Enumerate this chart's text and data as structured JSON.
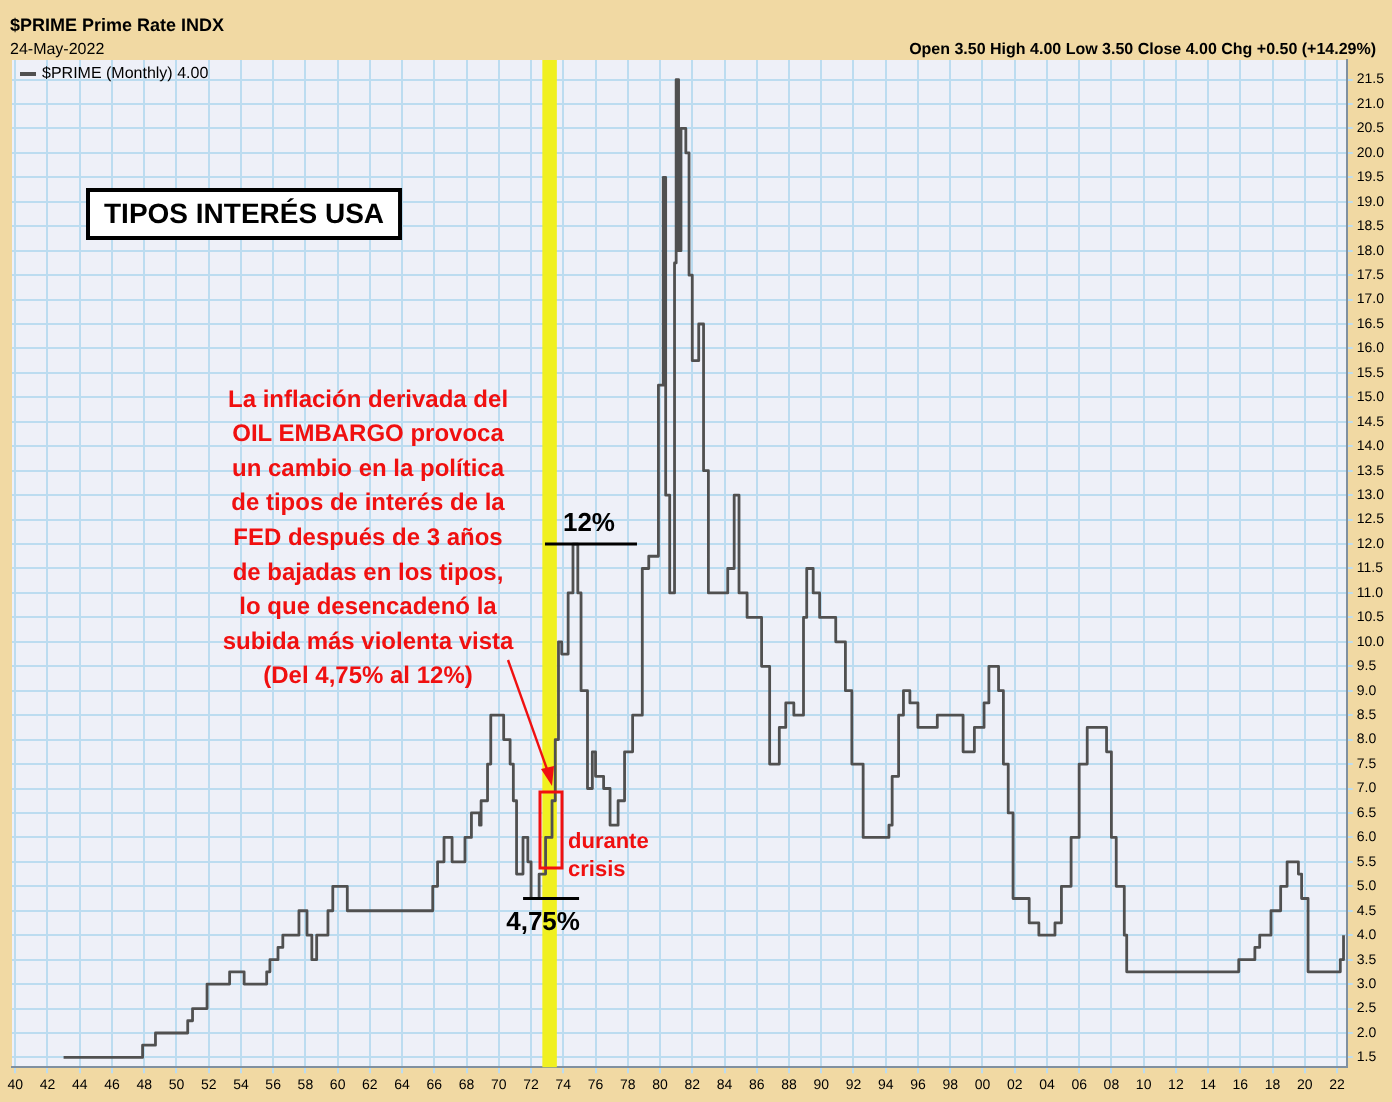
{
  "chart_data": {
    "type": "step",
    "title": "TIPOS INTERÉS USA",
    "annotations": [
      "$PRIME Prime Rate INDX",
      "24-May-2022",
      "Open 3.50 High 4.00 Low 3.50 Close 4.00 Chg +0.50 (+14.29%)",
      "La inflación derivada del\nOIL EMBARGO provoca\nun cambio en la política\nde tipos de interés de la\nFED después de 3 años\nde bajadas en los tipos,\nlo que desencadenó la\nsubida más violenta vista\n(Del 4,75% al 12%)",
      {
        "text": "12%",
        "x": 1974.6,
        "y": 12
      },
      {
        "text": "4,75%",
        "x": 1972.0,
        "y": 4.75
      },
      "durante\ncrisis"
    ],
    "xlim": [
      1939.8,
      2022.6
    ],
    "xticks": [
      {
        "value": 1940,
        "label": "40"
      },
      {
        "value": 1942,
        "label": "42"
      },
      {
        "value": 1944,
        "label": "44"
      },
      {
        "value": 1946,
        "label": "46"
      },
      {
        "value": 1948,
        "label": "48"
      },
      {
        "value": 1950,
        "label": "50"
      },
      {
        "value": 1952,
        "label": "52"
      },
      {
        "value": 1954,
        "label": "54"
      },
      {
        "value": 1956,
        "label": "56"
      },
      {
        "value": 1958,
        "label": "58"
      },
      {
        "value": 1960,
        "label": "60"
      },
      {
        "value": 1962,
        "label": "62"
      },
      {
        "value": 1964,
        "label": "64"
      },
      {
        "value": 1966,
        "label": "66"
      },
      {
        "value": 1968,
        "label": "68"
      },
      {
        "value": 1970,
        "label": "70"
      },
      {
        "value": 1972,
        "label": "72"
      },
      {
        "value": 1974,
        "label": "74"
      },
      {
        "value": 1976,
        "label": "76"
      },
      {
        "value": 1978,
        "label": "78"
      },
      {
        "value": 1980,
        "label": "80"
      },
      {
        "value": 1982,
        "label": "82"
      },
      {
        "value": 1984,
        "label": "84"
      },
      {
        "value": 1986,
        "label": "86"
      },
      {
        "value": 1988,
        "label": "88"
      },
      {
        "value": 1990,
        "label": "90"
      },
      {
        "value": 1992,
        "label": "92"
      },
      {
        "value": 1994,
        "label": "94"
      },
      {
        "value": 1996,
        "label": "96"
      },
      {
        "value": 1998,
        "label": "98"
      },
      {
        "value": 2000,
        "label": "00"
      },
      {
        "value": 2002,
        "label": "02"
      },
      {
        "value": 2004,
        "label": "04"
      },
      {
        "value": 2006,
        "label": "06"
      },
      {
        "value": 2008,
        "label": "08"
      },
      {
        "value": 2010,
        "label": "10"
      },
      {
        "value": 2012,
        "label": "12"
      },
      {
        "value": 2014,
        "label": "14"
      },
      {
        "value": 2016,
        "label": "16"
      },
      {
        "value": 2018,
        "label": "18"
      },
      {
        "value": 2020,
        "label": "20"
      },
      {
        "value": 2022,
        "label": "22"
      }
    ],
    "ylim": [
      1.3,
      21.9
    ],
    "yticks": [
      1.5,
      {
        "value": 2,
        "label": "2.0"
      },
      2.5,
      {
        "value": 3,
        "label": "3.0"
      },
      3.5,
      {
        "value": 4,
        "label": "4.0"
      },
      4.5,
      {
        "value": 5,
        "label": "5.0"
      },
      5.5,
      {
        "value": 6,
        "label": "6.0"
      },
      6.5,
      {
        "value": 7,
        "label": "7.0"
      },
      7.5,
      {
        "value": 8,
        "label": "8.0"
      },
      8.5,
      {
        "value": 9,
        "label": "9.0"
      },
      9.5,
      {
        "value": 10,
        "label": "10.0"
      },
      10.5,
      {
        "value": 11,
        "label": "11.0"
      },
      11.5,
      {
        "value": 12,
        "label": "12.0"
      },
      12.5,
      {
        "value": 13,
        "label": "13.0"
      },
      13.5,
      {
        "value": 14,
        "label": "14.0"
      },
      14.5,
      {
        "value": 15,
        "label": "15.0"
      },
      15.5,
      {
        "value": 16,
        "label": "16.0"
      },
      16.5,
      {
        "value": 17,
        "label": "17.0"
      },
      17.5,
      {
        "value": 18,
        "label": "18.0"
      },
      18.5,
      {
        "value": 19,
        "label": "19.0"
      },
      19.5,
      {
        "value": 20,
        "label": "20.0"
      },
      20.5,
      {
        "value": 21,
        "label": "21.0"
      },
      21.5
    ],
    "grid": true,
    "legend": "top left",
    "marker": "none",
    "line_style": "solid",
    "bands": [
      {
        "axis": "x",
        "from": 1972.7,
        "to": 1973.6,
        "color": "#f0f020"
      }
    ],
    "series": [
      {
        "name": "$PRIME (Monthly) 4.00",
        "color": "#505050",
        "x": [
          1943.0,
          1947.9,
          1948.7,
          1950.7,
          1951.0,
          1951.9,
          1953.3,
          1954.2,
          1955.6,
          1955.8,
          1956.3,
          1956.6,
          1957.6,
          1958.1,
          1958.4,
          1958.7,
          1959.4,
          1959.7,
          1960.6,
          1965.9,
          1966.2,
          1966.6,
          1967.1,
          1967.9,
          1968.3,
          1968.8,
          1968.9,
          1969.3,
          1969.5,
          1970.3,
          1970.7,
          1970.9,
          1971.1,
          1971.5,
          1971.8,
          1972.0,
          1972.5,
          1972.9,
          1973.3,
          1973.5,
          1973.7,
          1973.9,
          1974.3,
          1974.6,
          1974.9,
          1975.1,
          1975.5,
          1975.8,
          1976.0,
          1976.5,
          1976.9,
          1977.4,
          1977.8,
          1978.3,
          1978.9,
          1979.3,
          1979.9,
          1980.2,
          1980.35,
          1980.6,
          1980.9,
          1981.0,
          1981.15,
          1981.3,
          1981.6,
          1981.8,
          1982.0,
          1982.4,
          1982.7,
          1983.0,
          1984.2,
          1984.6,
          1984.9,
          1985.4,
          1986.3,
          1986.8,
          1987.4,
          1987.8,
          1988.3,
          1988.9,
          1989.1,
          1989.5,
          1989.9,
          1990.9,
          1991.5,
          1991.9,
          1992.6,
          1994.2,
          1994.4,
          1994.8,
          1995.1,
          1995.5,
          1996.0,
          1997.2,
          1998.8,
          1999.5,
          2000.1,
          2000.4,
          2001.0,
          2001.3,
          2001.6,
          2001.9,
          2002.9,
          2003.5,
          2004.5,
          2004.9,
          2005.5,
          2006.0,
          2006.5,
          2007.7,
          2008.0,
          2008.3,
          2008.8,
          2008.95,
          2015.9,
          2016.9,
          2017.2,
          2017.9,
          2018.5,
          2018.9,
          2019.6,
          2019.8,
          2020.2,
          2022.2,
          2022.4
        ],
        "values": [
          1.5,
          1.75,
          2.0,
          2.25,
          2.5,
          3.0,
          3.25,
          3.0,
          3.25,
          3.5,
          3.75,
          4.0,
          4.5,
          4.0,
          3.5,
          4.0,
          4.5,
          5.0,
          4.5,
          5.0,
          5.5,
          6.0,
          5.5,
          6.0,
          6.5,
          6.25,
          6.75,
          7.5,
          8.5,
          8.0,
          7.5,
          6.75,
          5.25,
          6.0,
          5.5,
          4.75,
          5.25,
          6.0,
          6.75,
          8.0,
          10.0,
          9.75,
          11.0,
          12.0,
          11.0,
          9.0,
          7.0,
          7.75,
          7.25,
          7.0,
          6.25,
          6.75,
          7.75,
          8.5,
          11.5,
          11.75,
          15.25,
          19.5,
          13.0,
          11.0,
          17.75,
          21.5,
          18.0,
          20.5,
          20.0,
          17.5,
          15.75,
          16.5,
          13.5,
          11.0,
          11.5,
          13.0,
          11.0,
          10.5,
          9.5,
          7.5,
          8.25,
          8.75,
          8.5,
          10.5,
          11.5,
          11.0,
          10.5,
          10.0,
          9.0,
          7.5,
          6.0,
          6.25,
          7.25,
          8.5,
          9.0,
          8.75,
          8.25,
          8.5,
          7.75,
          8.25,
          8.75,
          9.5,
          9.0,
          7.5,
          6.5,
          4.75,
          4.25,
          4.0,
          4.25,
          5.0,
          6.0,
          7.5,
          8.25,
          7.75,
          6.0,
          5.0,
          4.0,
          3.25,
          3.5,
          3.75,
          4.0,
          4.5,
          5.0,
          5.5,
          5.25,
          4.75,
          3.25,
          3.5,
          4.0
        ]
      }
    ]
  }
}
